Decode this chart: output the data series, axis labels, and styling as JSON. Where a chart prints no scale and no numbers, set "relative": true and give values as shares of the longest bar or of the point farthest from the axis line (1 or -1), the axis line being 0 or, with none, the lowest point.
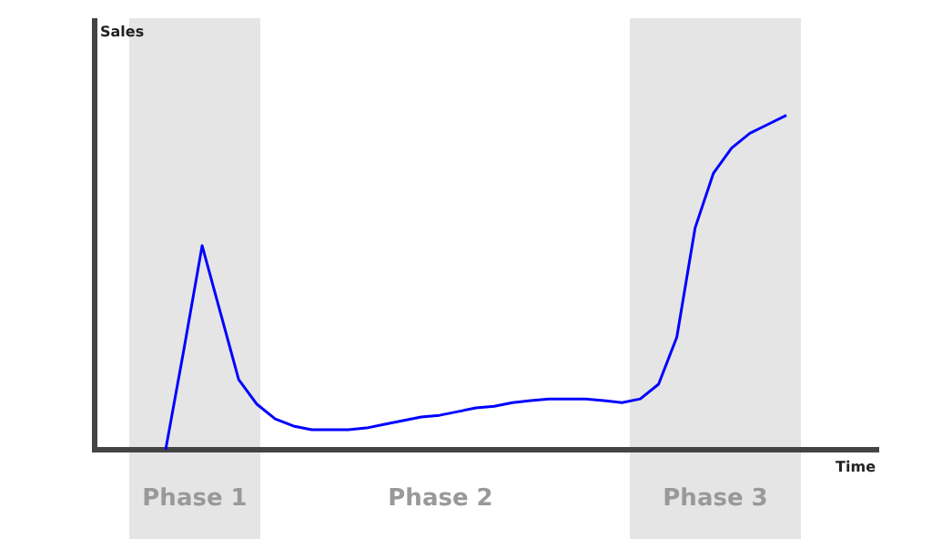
{
  "chart_data": {
    "type": "line",
    "xlabel": "Time",
    "relative": true,
    "tick_labels": false,
    "categories": [
      null,
      null,
      null,
      null,
      null,
      null,
      null,
      null,
      null,
      null,
      null,
      null,
      null,
      null,
      null,
      null,
      null,
      null,
      null,
      null,
      null,
      null,
      null,
      null,
      null,
      null,
      null,
      null,
      null,
      null,
      null,
      null,
      null,
      null,
      null
    ],
    "series": [
      {
        "color": "#0000ff",
        "values": [
          0,
          0.3,
          0.61,
          0.41,
          0.21,
          0.136,
          0.092,
          0.071,
          0.06,
          0.06,
          0.06,
          0.065,
          0.076,
          0.087,
          0.098,
          0.103,
          0.114,
          0.125,
          0.13,
          0.141,
          0.147,
          0.152,
          0.152,
          0.152,
          0.147,
          0.141,
          0.152,
          0.196,
          0.337,
          0.663,
          0.826,
          0.902,
          0.946,
          0.973,
          1
        ]
      }
    ],
    "annotations": [
      "Sales",
      "Phase 1",
      "Phase 2",
      "Phase 3"
    ]
  }
}
